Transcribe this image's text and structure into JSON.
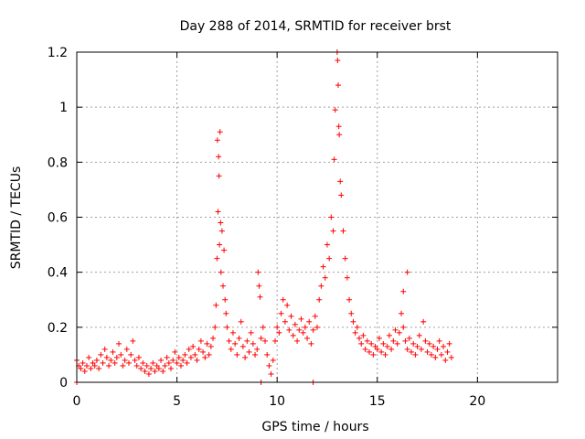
{
  "chart_data": {
    "type": "scatter",
    "title": "Day 288 of 2014, SRMTID for receiver brst",
    "xlabel": "GPS time / hours",
    "ylabel": "SRMTID / TECUs",
    "xlim": [
      0,
      24
    ],
    "ylim": [
      0,
      1.2
    ],
    "xticks": [
      0,
      5,
      10,
      15,
      20
    ],
    "yticks": [
      0,
      0.2,
      0.4,
      0.6,
      0.8,
      1,
      1.2
    ],
    "xtick_labels": [
      "0",
      "5",
      "10",
      "15",
      "20"
    ],
    "ytick_labels": [
      "0",
      "0.2",
      "0.4",
      "0.6",
      "0.8",
      "1",
      "1.2"
    ],
    "grid": true,
    "marker": "plus",
    "color": "#ff0000",
    "series": [
      {
        "name": "SRMTID",
        "points": [
          [
            0.0,
            0.08
          ],
          [
            0.1,
            0.06
          ],
          [
            0.2,
            0.05
          ],
          [
            0.3,
            0.07
          ],
          [
            0.4,
            0.04
          ],
          [
            0.5,
            0.06
          ],
          [
            0.6,
            0.09
          ],
          [
            0.7,
            0.05
          ],
          [
            0.8,
            0.07
          ],
          [
            0.9,
            0.06
          ],
          [
            1.0,
            0.08
          ],
          [
            1.1,
            0.05
          ],
          [
            1.2,
            0.1
          ],
          [
            1.3,
            0.07
          ],
          [
            1.4,
            0.12
          ],
          [
            1.5,
            0.09
          ],
          [
            1.6,
            0.06
          ],
          [
            1.7,
            0.08
          ],
          [
            1.8,
            0.11
          ],
          [
            1.9,
            0.07
          ],
          [
            2.0,
            0.09
          ],
          [
            2.1,
            0.14
          ],
          [
            2.2,
            0.1
          ],
          [
            2.3,
            0.06
          ],
          [
            2.4,
            0.08
          ],
          [
            2.5,
            0.12
          ],
          [
            2.6,
            0.07
          ],
          [
            2.7,
            0.1
          ],
          [
            2.8,
            0.15
          ],
          [
            2.9,
            0.08
          ],
          [
            3.0,
            0.06
          ],
          [
            3.1,
            0.09
          ],
          [
            3.2,
            0.05
          ],
          [
            3.3,
            0.07
          ],
          [
            3.4,
            0.04
          ],
          [
            3.5,
            0.06
          ],
          [
            3.6,
            0.03
          ],
          [
            3.7,
            0.05
          ],
          [
            3.8,
            0.07
          ],
          [
            3.9,
            0.04
          ],
          [
            4.0,
            0.06
          ],
          [
            4.1,
            0.05
          ],
          [
            4.2,
            0.08
          ],
          [
            4.3,
            0.04
          ],
          [
            4.4,
            0.06
          ],
          [
            4.5,
            0.09
          ],
          [
            4.6,
            0.07
          ],
          [
            4.7,
            0.05
          ],
          [
            4.8,
            0.08
          ],
          [
            4.9,
            0.11
          ],
          [
            5.0,
            0.07
          ],
          [
            5.1,
            0.09
          ],
          [
            5.2,
            0.06
          ],
          [
            5.3,
            0.08
          ],
          [
            5.4,
            0.1
          ],
          [
            5.5,
            0.07
          ],
          [
            5.6,
            0.12
          ],
          [
            5.7,
            0.09
          ],
          [
            5.8,
            0.13
          ],
          [
            5.9,
            0.1
          ],
          [
            6.0,
            0.08
          ],
          [
            6.1,
            0.12
          ],
          [
            6.2,
            0.15
          ],
          [
            6.3,
            0.11
          ],
          [
            6.4,
            0.09
          ],
          [
            6.5,
            0.14
          ],
          [
            6.6,
            0.1
          ],
          [
            6.7,
            0.13
          ],
          [
            6.8,
            0.16
          ],
          [
            6.9,
            0.2
          ],
          [
            6.95,
            0.28
          ],
          [
            7.0,
            0.45
          ],
          [
            7.02,
            0.88
          ],
          [
            7.05,
            0.62
          ],
          [
            7.08,
            0.82
          ],
          [
            7.1,
            0.75
          ],
          [
            7.12,
            0.5
          ],
          [
            7.15,
            0.91
          ],
          [
            7.18,
            0.58
          ],
          [
            7.2,
            0.4
          ],
          [
            7.25,
            0.55
          ],
          [
            7.3,
            0.35
          ],
          [
            7.35,
            0.48
          ],
          [
            7.4,
            0.3
          ],
          [
            7.45,
            0.25
          ],
          [
            7.5,
            0.2
          ],
          [
            7.6,
            0.15
          ],
          [
            7.7,
            0.12
          ],
          [
            7.8,
            0.18
          ],
          [
            7.9,
            0.14
          ],
          [
            8.0,
            0.1
          ],
          [
            8.1,
            0.16
          ],
          [
            8.2,
            0.22
          ],
          [
            8.3,
            0.13
          ],
          [
            8.4,
            0.09
          ],
          [
            8.5,
            0.15
          ],
          [
            8.6,
            0.11
          ],
          [
            8.7,
            0.18
          ],
          [
            8.8,
            0.14
          ],
          [
            8.9,
            0.1
          ],
          [
            9.0,
            0.12
          ],
          [
            9.05,
            0.4
          ],
          [
            9.1,
            0.35
          ],
          [
            9.15,
            0.31
          ],
          [
            9.2,
            0.16
          ],
          [
            9.3,
            0.2
          ],
          [
            9.4,
            0.15
          ],
          [
            9.5,
            0.1
          ],
          [
            9.6,
            0.06
          ],
          [
            9.7,
            0.03
          ],
          [
            9.8,
            0.08
          ],
          [
            9.9,
            0.15
          ],
          [
            10.0,
            0.2
          ],
          [
            10.1,
            0.18
          ],
          [
            10.2,
            0.25
          ],
          [
            10.3,
            0.3
          ],
          [
            10.4,
            0.22
          ],
          [
            10.5,
            0.28
          ],
          [
            10.6,
            0.19
          ],
          [
            10.7,
            0.24
          ],
          [
            10.8,
            0.17
          ],
          [
            10.9,
            0.21
          ],
          [
            11.0,
            0.15
          ],
          [
            11.1,
            0.19
          ],
          [
            11.2,
            0.23
          ],
          [
            11.3,
            0.18
          ],
          [
            11.4,
            0.2
          ],
          [
            11.5,
            0.16
          ],
          [
            11.6,
            0.22
          ],
          [
            11.7,
            0.14
          ],
          [
            11.8,
            0.19
          ],
          [
            11.9,
            0.24
          ],
          [
            12.0,
            0.2
          ],
          [
            12.1,
            0.3
          ],
          [
            12.2,
            0.35
          ],
          [
            12.3,
            0.42
          ],
          [
            12.4,
            0.38
          ],
          [
            12.5,
            0.5
          ],
          [
            12.6,
            0.45
          ],
          [
            12.7,
            0.6
          ],
          [
            12.8,
            0.55
          ],
          [
            12.85,
            0.81
          ],
          [
            12.9,
            0.99
          ],
          [
            13.0,
            1.2
          ],
          [
            13.02,
            1.17
          ],
          [
            13.05,
            1.08
          ],
          [
            13.08,
            0.93
          ],
          [
            13.1,
            0.9
          ],
          [
            13.15,
            0.73
          ],
          [
            13.2,
            0.68
          ],
          [
            13.3,
            0.55
          ],
          [
            13.4,
            0.45
          ],
          [
            13.5,
            0.38
          ],
          [
            13.6,
            0.3
          ],
          [
            13.7,
            0.25
          ],
          [
            13.8,
            0.22
          ],
          [
            13.9,
            0.18
          ],
          [
            14.0,
            0.2
          ],
          [
            14.1,
            0.16
          ],
          [
            14.2,
            0.14
          ],
          [
            14.3,
            0.17
          ],
          [
            14.4,
            0.12
          ],
          [
            14.5,
            0.15
          ],
          [
            14.6,
            0.11
          ],
          [
            14.7,
            0.14
          ],
          [
            14.8,
            0.1
          ],
          [
            14.9,
            0.13
          ],
          [
            15.0,
            0.12
          ],
          [
            15.1,
            0.16
          ],
          [
            15.2,
            0.11
          ],
          [
            15.3,
            0.14
          ],
          [
            15.4,
            0.1
          ],
          [
            15.5,
            0.13
          ],
          [
            15.6,
            0.17
          ],
          [
            15.7,
            0.12
          ],
          [
            15.8,
            0.15
          ],
          [
            15.9,
            0.19
          ],
          [
            16.0,
            0.14
          ],
          [
            16.1,
            0.18
          ],
          [
            16.2,
            0.25
          ],
          [
            16.3,
            0.2
          ],
          [
            16.4,
            0.15
          ],
          [
            16.5,
            0.12
          ],
          [
            16.6,
            0.16
          ],
          [
            16.7,
            0.11
          ],
          [
            16.8,
            0.14
          ],
          [
            16.9,
            0.1
          ],
          [
            17.0,
            0.13
          ],
          [
            17.1,
            0.17
          ],
          [
            17.2,
            0.12
          ],
          [
            17.3,
            0.22
          ],
          [
            17.4,
            0.15
          ],
          [
            17.5,
            0.11
          ],
          [
            17.6,
            0.14
          ],
          [
            17.7,
            0.1
          ],
          [
            17.8,
            0.13
          ],
          [
            17.9,
            0.09
          ],
          [
            18.0,
            0.12
          ],
          [
            18.1,
            0.15
          ],
          [
            18.2,
            0.1
          ],
          [
            18.3,
            0.13
          ],
          [
            18.4,
            0.08
          ],
          [
            18.5,
            0.11
          ],
          [
            18.6,
            0.14
          ],
          [
            18.7,
            0.09
          ],
          [
            0.0,
            0.0
          ],
          [
            9.2,
            0.0
          ],
          [
            11.8,
            0.0
          ],
          [
            16.3,
            0.33
          ],
          [
            16.5,
            0.4
          ]
        ]
      }
    ]
  }
}
